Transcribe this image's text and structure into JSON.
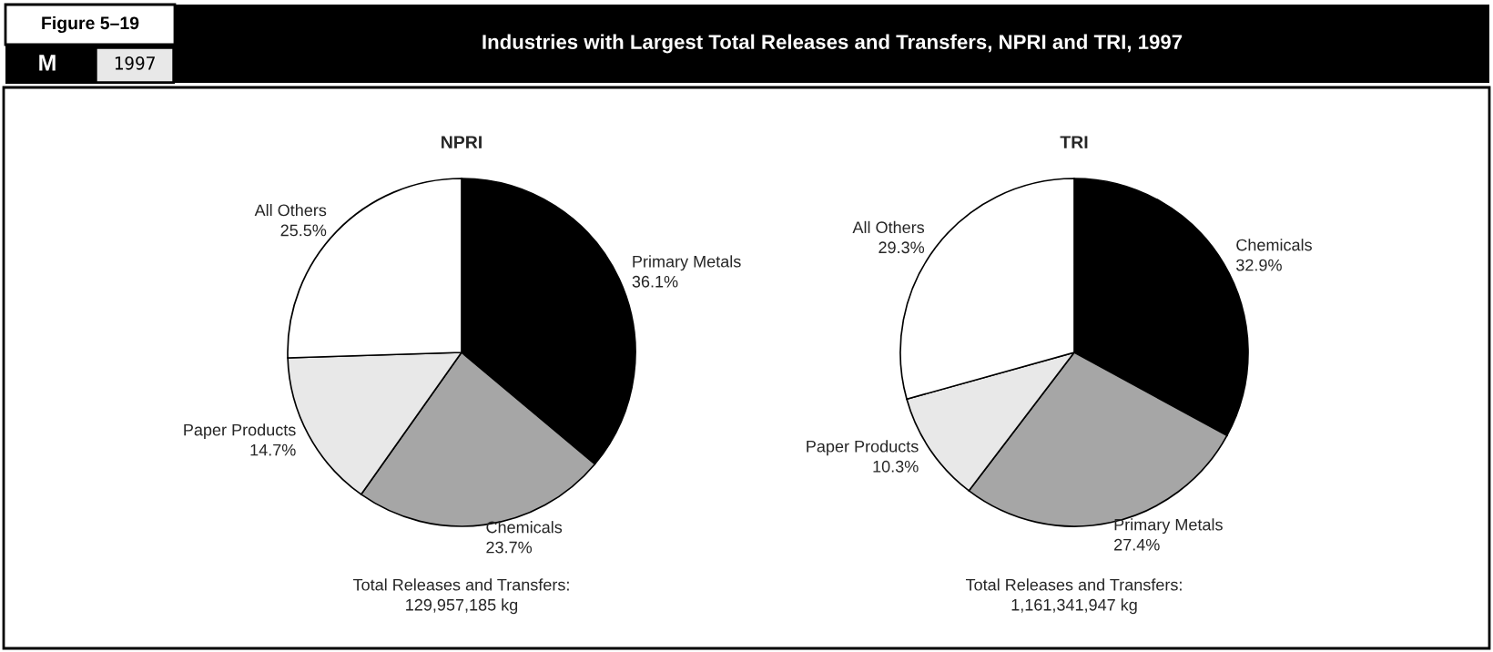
{
  "chart_data": [
    {
      "type": "pie",
      "title": "NPRI",
      "categories": [
        "Primary Metals",
        "Chemicals",
        "Paper Products",
        "All Others"
      ],
      "values": [
        36.1,
        23.7,
        14.7,
        25.5
      ],
      "value_labels": [
        "36.1%",
        "23.7%",
        "14.7%",
        "25.5%"
      ],
      "colors": [
        "#000000",
        "#a6a6a6",
        "#e8e8e8",
        "#ffffff"
      ],
      "annotations": [
        "Figure 5–19",
        "M",
        "1997",
        "Industries with Largest Total Releases and Transfers, NPRI and TRI, 1997",
        "Total Releases and Transfers:\n129,957,185 kg"
      ]
    },
    {
      "type": "pie",
      "title": "TRI",
      "categories": [
        "Chemicals",
        "Primary Metals",
        "Paper Products",
        "All Others"
      ],
      "values": [
        32.9,
        27.4,
        10.3,
        29.3
      ],
      "value_labels": [
        "32.9%",
        "27.4%",
        "10.3%",
        "29.3%"
      ],
      "colors": [
        "#000000",
        "#a6a6a6",
        "#e8e8e8",
        "#ffffff"
      ],
      "annotations": [
        "Total Releases and Transfers:\n1,161,341,947 kg"
      ]
    }
  ]
}
